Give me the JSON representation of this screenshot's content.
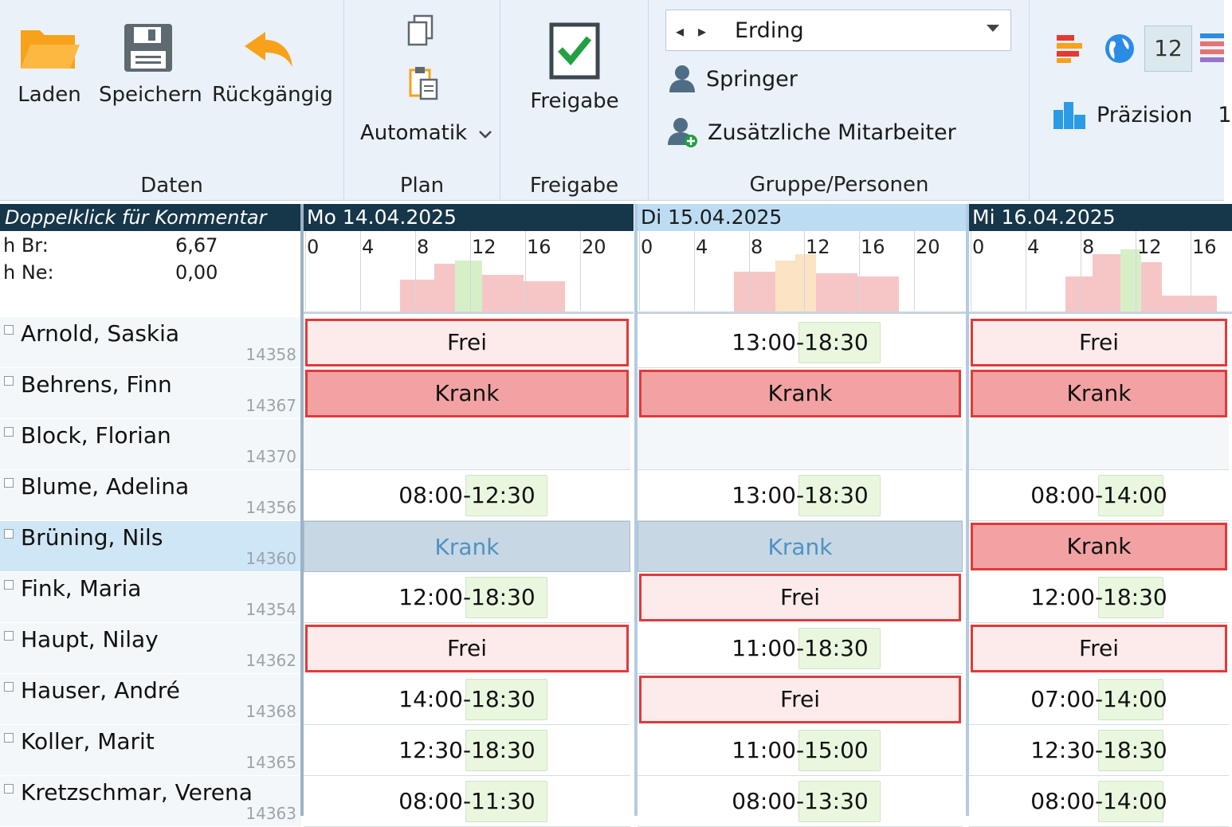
{
  "ribbon": {
    "daten": {
      "label": "Daten",
      "buttons": [
        "Laden",
        "Speichern",
        "Rückgängig"
      ]
    },
    "plan": {
      "label": "Plan",
      "automatik": "Automatik"
    },
    "freigabe": {
      "label": "Freigabe",
      "button": "Freigabe"
    },
    "gruppe": {
      "label": "Gruppe/Personen",
      "location": "Erding",
      "springer": "Springer",
      "zusaetzliche": "Zusätzliche Mitarbeiter"
    },
    "extra": {
      "badge": "12",
      "praezision_label": "Präzision",
      "praezision_value": "1"
    }
  },
  "grid": {
    "left_header": "Doppelklick für Kommentar",
    "summary": [
      {
        "label": "h Br:",
        "value": "6,67"
      },
      {
        "label": "h Ne:",
        "value": "0,00"
      }
    ],
    "hour_ticks": [
      "0",
      "4",
      "8",
      "12",
      "16",
      "20"
    ],
    "days": [
      {
        "label": "Mo 14.04.2025",
        "selected": false
      },
      {
        "label": "Di 15.04.2025",
        "selected": true
      },
      {
        "label": "Mi 16.04.2025",
        "selected": false
      }
    ],
    "employees": [
      {
        "name": "Arnold, Saskia",
        "id": "14358",
        "selected": false,
        "cells": [
          {
            "type": "frei",
            "text": "Frei"
          },
          {
            "type": "shift",
            "text": "13:00-18:30"
          },
          {
            "type": "frei",
            "text": "Frei"
          }
        ]
      },
      {
        "name": "Behrens, Finn",
        "id": "14367",
        "selected": false,
        "cells": [
          {
            "type": "krank",
            "text": "Krank"
          },
          {
            "type": "krank",
            "text": "Krank"
          },
          {
            "type": "krank",
            "text": "Krank"
          }
        ]
      },
      {
        "name": "Block, Florian",
        "id": "14370",
        "selected": false,
        "cells": [
          {
            "type": "empty",
            "text": ""
          },
          {
            "type": "empty",
            "text": ""
          },
          {
            "type": "empty",
            "text": ""
          }
        ]
      },
      {
        "name": "Blume, Adelina",
        "id": "14356",
        "selected": false,
        "cells": [
          {
            "type": "shift",
            "text": "08:00-12:30"
          },
          {
            "type": "shift",
            "text": "13:00-18:30"
          },
          {
            "type": "shift",
            "text": "08:00-14:00"
          }
        ]
      },
      {
        "name": "Brüning, Nils",
        "id": "14360",
        "selected": true,
        "cells": [
          {
            "type": "krank-sel",
            "text": "Krank"
          },
          {
            "type": "krank-sel",
            "text": "Krank"
          },
          {
            "type": "krank",
            "text": "Krank"
          }
        ]
      },
      {
        "name": "Fink, Maria",
        "id": "14354",
        "selected": false,
        "cells": [
          {
            "type": "shift",
            "text": "12:00-18:30"
          },
          {
            "type": "frei",
            "text": "Frei"
          },
          {
            "type": "shift",
            "text": "12:00-18:30"
          }
        ]
      },
      {
        "name": "Haupt, Nilay",
        "id": "14362",
        "selected": false,
        "cells": [
          {
            "type": "frei",
            "text": "Frei"
          },
          {
            "type": "shift",
            "text": "11:00-18:30"
          },
          {
            "type": "frei",
            "text": "Frei"
          }
        ]
      },
      {
        "name": "Hauser, André",
        "id": "14368",
        "selected": false,
        "cells": [
          {
            "type": "shift",
            "text": "14:00-18:30"
          },
          {
            "type": "frei",
            "text": "Frei"
          },
          {
            "type": "shift",
            "text": "07:00-14:00"
          }
        ]
      },
      {
        "name": "Koller, Marit",
        "id": "14365",
        "selected": false,
        "cells": [
          {
            "type": "shift",
            "text": "12:30-18:30"
          },
          {
            "type": "shift",
            "text": "11:00-15:00"
          },
          {
            "type": "shift",
            "text": "12:30-18:30"
          }
        ]
      },
      {
        "name": "Kretzschmar, Verena",
        "id": "14363",
        "selected": false,
        "cells": [
          {
            "type": "shift",
            "text": "08:00-11:30"
          },
          {
            "type": "shift",
            "text": "08:00-13:30"
          },
          {
            "type": "shift",
            "text": "08:00-14:00"
          }
        ]
      }
    ]
  },
  "colors": {
    "accent_dark": "#16364a",
    "selected_day": "#bcdcf3",
    "frei_bg": "#fdebeb",
    "krank_bg": "#f2a2a2",
    "border_red": "#e03a3a"
  }
}
